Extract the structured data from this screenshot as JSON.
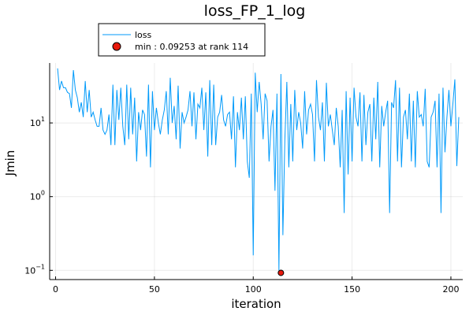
{
  "chart_data": {
    "type": "line",
    "title": "loss_FP_1_log",
    "xlabel": "iteration",
    "ylabel": "Jmin",
    "xlim": [
      -3,
      206
    ],
    "ylim": [
      0.075,
      65
    ],
    "yscale": "log",
    "grid": true,
    "legend_position": "top-left",
    "x_ticks": [
      0,
      50,
      100,
      150,
      200
    ],
    "y_ticks": [
      {
        "value": 0.1,
        "base": "10",
        "exp": "−1"
      },
      {
        "value": 1,
        "base": "10",
        "exp": "0"
      },
      {
        "value": 10,
        "base": "10",
        "exp": "1"
      }
    ],
    "series": [
      {
        "name": "loss",
        "color": "#009AFA",
        "x_start": 1,
        "values": [
          55,
          28,
          37,
          30,
          30,
          26,
          25,
          16,
          52,
          28,
          22,
          14,
          19,
          12,
          37,
          14,
          28,
          12,
          14,
          11,
          9,
          9,
          16,
          8,
          7,
          8,
          13,
          5,
          33,
          5,
          28,
          11,
          30,
          9,
          5,
          33,
          6,
          30,
          7,
          22,
          3,
          14,
          8,
          15,
          13,
          3.5,
          33,
          2.5,
          27,
          8,
          16,
          10,
          7,
          11,
          15,
          27,
          7,
          41,
          10,
          17,
          6,
          32,
          4.5,
          14,
          10,
          12,
          15,
          27,
          9,
          26,
          6,
          18,
          16,
          30,
          8,
          26,
          3.5,
          38,
          5,
          33,
          5,
          12,
          14,
          24,
          11,
          9,
          13,
          14,
          6,
          23,
          2.5,
          14,
          8,
          22,
          6,
          23,
          3,
          1.8,
          25,
          0.16,
          48,
          14,
          36,
          18,
          6,
          25,
          20,
          3,
          9,
          15,
          1.2,
          25,
          0.1,
          46,
          0.3,
          6,
          36,
          2.5,
          18,
          3,
          28,
          8,
          14,
          10,
          4.5,
          27,
          7,
          15,
          18,
          13,
          3,
          38,
          12,
          8,
          19,
          3,
          35,
          9,
          13,
          8,
          5,
          16,
          9,
          2.5,
          15,
          0.6,
          27,
          2,
          22,
          3,
          30,
          12,
          9,
          26,
          3,
          24,
          5,
          14,
          18,
          3,
          22,
          6,
          36,
          2.5,
          17,
          9,
          14,
          20,
          0.6,
          19,
          16,
          38,
          3,
          30,
          2.5,
          12,
          15,
          6,
          25,
          3,
          20,
          2.5,
          27,
          12,
          13,
          9,
          29,
          3,
          2.5,
          12,
          14,
          20,
          2.5,
          25,
          0.6,
          30,
          4,
          12,
          28,
          9,
          18,
          39,
          2.6,
          12
        ]
      }
    ],
    "min_marker": {
      "label": "min : 0.09253 at rank 114",
      "x": 114,
      "y": 0.09253,
      "color": "#E8190C"
    }
  }
}
